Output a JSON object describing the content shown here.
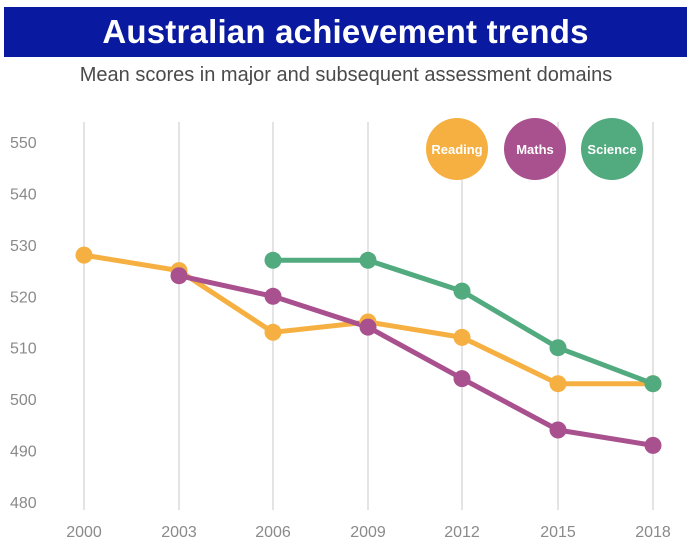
{
  "header": {
    "title": "Australian achievement trends",
    "subtitle": "Mean scores in major and subsequent assessment domains"
  },
  "chart_data": {
    "type": "line",
    "title": "Australian achievement trends",
    "subtitle": "Mean scores in major and subsequent assessment domains",
    "xlabel": "",
    "ylabel": "",
    "x": [
      "2000",
      "2003",
      "2006",
      "2009",
      "2012",
      "2015",
      "2018"
    ],
    "ylim": [
      480,
      550
    ],
    "yticks": [
      480,
      490,
      500,
      510,
      520,
      530,
      540,
      550
    ],
    "grid": "vertical",
    "legend": "top-right",
    "series": [
      {
        "name": "Reading",
        "color": "#f5b041",
        "values": [
          528,
          525,
          513,
          515,
          512,
          503,
          503
        ]
      },
      {
        "name": "Maths",
        "color": "#a9508e",
        "values": [
          null,
          524,
          520,
          514,
          504,
          494,
          491
        ]
      },
      {
        "name": "Science",
        "color": "#52aa7f",
        "values": [
          null,
          null,
          527,
          527,
          521,
          510,
          503
        ]
      }
    ]
  }
}
